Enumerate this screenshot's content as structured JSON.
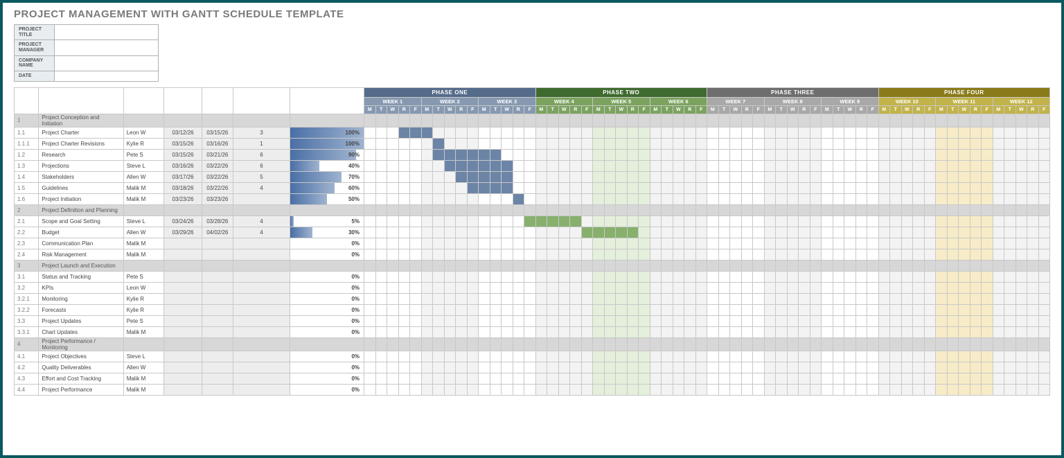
{
  "title": "PROJECT MANAGEMENT WITH GANTT SCHEDULE TEMPLATE",
  "meta_labels": [
    "PROJECT TITLE",
    "PROJECT MANAGER",
    "COMPANY NAME",
    "DATE"
  ],
  "meta_values": [
    "",
    "",
    "",
    ""
  ],
  "task_headers": {
    "id": "TASK ID",
    "title": "TASK TITLE",
    "owner": "TASK OWNER",
    "start": "START DATE",
    "due": "DUE DATE",
    "dur": "DURATION IN DAYS",
    "pct": "PCT OF TASK COMPLETE"
  },
  "day_labels": [
    "M",
    "T",
    "W",
    "R",
    "F"
  ],
  "phases": [
    {
      "label": "PHASE ONE",
      "bg": "#556b8a",
      "week_bg": "#8799b1",
      "weeks": [
        "WEEK 1",
        "WEEK 2",
        "WEEK 3"
      ],
      "bar_color": "#6c84a6",
      "hl": null
    },
    {
      "label": "PHASE TWO",
      "bg": "#3f6b2e",
      "week_bg": "#7ba35e",
      "weeks": [
        "WEEK 4",
        "WEEK 5",
        "WEEK 6"
      ],
      "bar_color": "#88b06d",
      "hl": "hl-green",
      "hl_week": 1
    },
    {
      "label": "PHASE THREE",
      "bg": "#6e6e6e",
      "week_bg": "#a8a8a8",
      "weeks": [
        "WEEK 7",
        "WEEK 8",
        "WEEK 9"
      ],
      "bar_color": "#a8a8a8",
      "hl": null
    },
    {
      "label": "PHASE FOUR",
      "bg": "#8a7a1a",
      "week_bg": "#c2b34a",
      "weeks": [
        "WEEK 10",
        "WEEK 11",
        "WEEK 12"
      ],
      "bar_color": "#d7c766",
      "hl": "hl-cream",
      "hl_week": 1
    }
  ],
  "week1_start": "2026-03-09",
  "tasks": [
    {
      "id": "1",
      "title": "Project Conception and Initiation",
      "section": true
    },
    {
      "id": "1.1",
      "title": "Project Charter",
      "owner": "Leon W",
      "start": "03/12/26",
      "due": "03/15/26",
      "dur": "3",
      "pct": 100,
      "indent": 1,
      "bar": [
        3,
        5
      ]
    },
    {
      "id": "1.1.1",
      "title": "Project Charter Revisions",
      "owner": "Kylie R",
      "start": "03/15/26",
      "due": "03/16/26",
      "dur": "1",
      "pct": 100,
      "indent": 2,
      "bar": [
        6,
        6
      ]
    },
    {
      "id": "1.2",
      "title": "Research",
      "owner": "Pete S",
      "start": "03/15/26",
      "due": "03/21/26",
      "dur": "6",
      "pct": 90,
      "indent": 1,
      "bar": [
        6,
        11
      ]
    },
    {
      "id": "1.3",
      "title": "Projections",
      "owner": "Steve L",
      "start": "03/16/26",
      "due": "03/22/26",
      "dur": "6",
      "pct": 40,
      "indent": 1,
      "bar": [
        7,
        12
      ]
    },
    {
      "id": "1.4",
      "title": "Stakeholders",
      "owner": "Allen W",
      "start": "03/17/26",
      "due": "03/22/26",
      "dur": "5",
      "pct": 70,
      "indent": 1,
      "bar": [
        8,
        12
      ]
    },
    {
      "id": "1.5",
      "title": "Guidelines",
      "owner": "Malik M",
      "start": "03/18/26",
      "due": "03/22/26",
      "dur": "4",
      "pct": 60,
      "indent": 1,
      "bar": [
        9,
        12
      ]
    },
    {
      "id": "1.6",
      "title": "Project Initiation",
      "owner": "Malik M",
      "start": "03/23/26",
      "due": "03/23/26",
      "dur": "",
      "pct": 50,
      "indent": 1,
      "bar": [
        13,
        13
      ]
    },
    {
      "id": "2",
      "title": "Project Definition and Planning",
      "section": true
    },
    {
      "id": "2.1",
      "title": "Scope and Goal Setting",
      "owner": "Steve L",
      "start": "03/24/26",
      "due": "03/28/26",
      "dur": "4",
      "pct": 5,
      "indent": 1,
      "bar": [
        14,
        18
      ],
      "phase": 1
    },
    {
      "id": "2.2",
      "title": "Budget",
      "owner": "Allen W",
      "start": "03/29/26",
      "due": "04/02/26",
      "dur": "4",
      "pct": 30,
      "indent": 1,
      "bar": [
        19,
        23
      ],
      "phase": 1
    },
    {
      "id": "2.3",
      "title": "Communication Plan",
      "owner": "Malik M",
      "start": "",
      "due": "",
      "dur": "",
      "pct": 0,
      "indent": 1
    },
    {
      "id": "2.4",
      "title": "Risk Management",
      "owner": "Malik M",
      "start": "",
      "due": "",
      "dur": "",
      "pct": 0,
      "indent": 1
    },
    {
      "id": "3",
      "title": "Project Launch and Execution",
      "section": true
    },
    {
      "id": "3.1",
      "title": "Status and Tracking",
      "owner": "Pete S",
      "start": "",
      "due": "",
      "dur": "",
      "pct": 0,
      "indent": 1
    },
    {
      "id": "3.2",
      "title": "KPIs",
      "owner": "Leon W",
      "start": "",
      "due": "",
      "dur": "",
      "pct": 0,
      "indent": 1
    },
    {
      "id": "3.2.1",
      "title": "Monitoring",
      "owner": "Kylie R",
      "start": "",
      "due": "",
      "dur": "",
      "pct": 0,
      "indent": 2
    },
    {
      "id": "3.2.2",
      "title": "Forecasts",
      "owner": "Kylie R",
      "start": "",
      "due": "",
      "dur": "",
      "pct": 0,
      "indent": 2
    },
    {
      "id": "3.3",
      "title": "Project Updates",
      "owner": "Pete S",
      "start": "",
      "due": "",
      "dur": "",
      "pct": 0,
      "indent": 1
    },
    {
      "id": "3.3.1",
      "title": "Chart Updates",
      "owner": "Malik M",
      "start": "",
      "due": "",
      "dur": "",
      "pct": 0,
      "indent": 2
    },
    {
      "id": "4",
      "title": "Project Performance / Monitoring",
      "section": true
    },
    {
      "id": "4.1",
      "title": "Project Objectives",
      "owner": "Steve L",
      "start": "",
      "due": "",
      "dur": "",
      "pct": 0,
      "indent": 1
    },
    {
      "id": "4.2",
      "title": "Quality Deliverables",
      "owner": "Allen W",
      "start": "",
      "due": "",
      "dur": "",
      "pct": 0,
      "indent": 1
    },
    {
      "id": "4.3",
      "title": "Effort and Cost Tracking",
      "owner": "Malik M",
      "start": "",
      "due": "",
      "dur": "",
      "pct": 0,
      "indent": 1
    },
    {
      "id": "4.4",
      "title": "Project Performance",
      "owner": "Malik M",
      "start": "",
      "due": "",
      "dur": "",
      "pct": 0,
      "indent": 1
    }
  ]
}
